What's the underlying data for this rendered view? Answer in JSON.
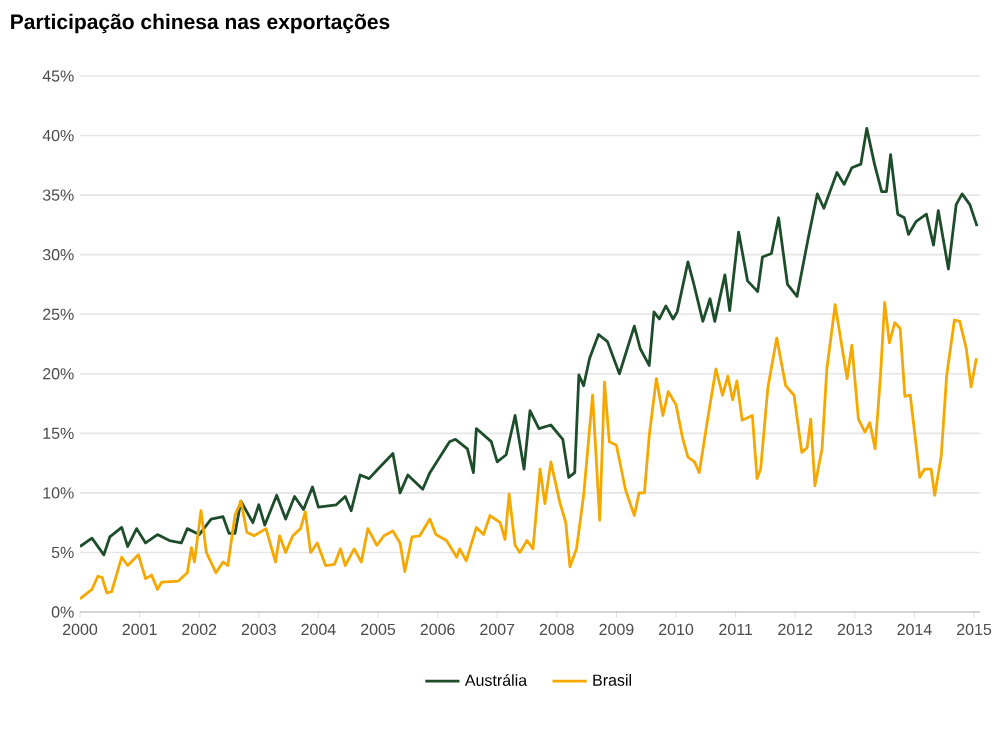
{
  "chart_data": {
    "type": "line",
    "title": "Participação chinesa nas exportações",
    "xlim": [
      2000,
      2015.1
    ],
    "xticks": [
      2000,
      2001,
      2002,
      2003,
      2004,
      2005,
      2006,
      2007,
      2008,
      2009,
      2010,
      2011,
      2012,
      2013,
      2014,
      2015
    ],
    "ylim": [
      0,
      45
    ],
    "yticks": [
      {
        "value": 0,
        "label": "0%"
      },
      {
        "value": 5,
        "label": "5%"
      },
      {
        "value": 10,
        "label": "10%"
      },
      {
        "value": 15,
        "label": "15%"
      },
      {
        "value": 20,
        "label": "20%"
      },
      {
        "value": 25,
        "label": "25%"
      },
      {
        "value": 30,
        "label": "30%"
      },
      {
        "value": 35,
        "label": "35%"
      },
      {
        "value": 40,
        "label": "40%"
      },
      {
        "value": 45,
        "label": "45%"
      }
    ],
    "grid": "y",
    "legend": "bottom",
    "marker": "none",
    "line_style": "solid",
    "series": [
      {
        "name": "Austrália",
        "color": "#1e4d2b",
        "x": [
          2000.0,
          2000.2,
          2000.4,
          2000.5,
          2000.7,
          2000.8,
          2000.95,
          2001.1,
          2001.3,
          2001.5,
          2001.7,
          2001.8,
          2002.0,
          2002.2,
          2002.4,
          2002.5,
          2002.6,
          2002.7,
          2002.9,
          2003.0,
          2003.1,
          2003.3,
          2003.45,
          2003.6,
          2003.75,
          2003.9,
          2004.0,
          2004.3,
          2004.45,
          2004.55,
          2004.7,
          2004.85,
          2005.0,
          2005.25,
          2005.37,
          2005.5,
          2005.75,
          2005.87,
          2006.2,
          2006.3,
          2006.5,
          2006.6,
          2006.65,
          2006.9,
          2007.0,
          2007.15,
          2007.3,
          2007.45,
          2007.55,
          2007.7,
          2007.9,
          2008.1,
          2008.2,
          2008.3,
          2008.37,
          2008.45,
          2008.55,
          2008.7,
          2008.85,
          2009.05,
          2009.3,
          2009.4,
          2009.55,
          2009.63,
          2009.72,
          2009.83,
          2009.95,
          2010.02,
          2010.2,
          2010.3,
          2010.45,
          2010.57,
          2010.65,
          2010.82,
          2010.9,
          2011.05,
          2011.2,
          2011.37,
          2011.45,
          2011.6,
          2011.72,
          2011.87,
          2012.03,
          2012.23,
          2012.37,
          2012.48,
          2012.7,
          2012.82,
          2012.95,
          2013.1,
          2013.2,
          2013.33,
          2013.45,
          2013.53,
          2013.6,
          2013.72,
          2013.83,
          2013.9,
          2014.03,
          2014.2,
          2014.32,
          2014.4,
          2014.57,
          2014.7,
          2014.8,
          2014.93,
          2015.05
        ],
        "values": [
          5.5,
          6.2,
          4.8,
          6.3,
          7.1,
          5.5,
          7.0,
          5.8,
          6.5,
          6.0,
          5.8,
          7.0,
          6.5,
          7.8,
          8.0,
          6.6,
          6.6,
          9.3,
          7.5,
          9.0,
          7.3,
          9.8,
          7.8,
          9.7,
          8.6,
          10.5,
          8.8,
          9.0,
          9.7,
          8.5,
          11.5,
          11.2,
          12.0,
          13.3,
          10.0,
          11.5,
          10.3,
          11.7,
          14.3,
          14.5,
          13.7,
          11.7,
          15.4,
          14.3,
          12.6,
          13.2,
          16.5,
          12.0,
          16.9,
          15.4,
          15.7,
          14.5,
          11.3,
          11.7,
          19.9,
          19.0,
          21.3,
          23.3,
          22.7,
          20.0,
          24.0,
          22.1,
          20.7,
          25.2,
          24.6,
          25.7,
          24.6,
          25.2,
          29.4,
          27.5,
          24.4,
          26.3,
          24.4,
          28.3,
          25.3,
          31.9,
          27.8,
          26.9,
          29.8,
          30.1,
          33.1,
          27.5,
          26.5,
          31.7,
          35.1,
          33.9,
          36.9,
          35.9,
          37.3,
          37.6,
          40.6,
          37.6,
          35.3,
          35.3,
          38.4,
          33.4,
          33.1,
          31.7,
          32.8,
          33.4,
          30.8,
          33.7,
          28.8,
          34.2,
          35.1,
          34.2,
          32.4
        ]
      },
      {
        "name": "Brasil",
        "color": "#f5a800",
        "x": [
          2000.0,
          2000.2,
          2000.3,
          2000.37,
          2000.45,
          2000.53,
          2000.7,
          2000.8,
          2000.98,
          2001.1,
          2001.2,
          2001.3,
          2001.37,
          2001.65,
          2001.8,
          2001.87,
          2001.92,
          2002.03,
          2002.12,
          2002.28,
          2002.4,
          2002.48,
          2002.6,
          2002.7,
          2002.8,
          2002.92,
          2003.12,
          2003.28,
          2003.35,
          2003.45,
          2003.57,
          2003.7,
          2003.78,
          2003.87,
          2003.98,
          2004.12,
          2004.27,
          2004.37,
          2004.45,
          2004.6,
          2004.72,
          2004.83,
          2004.98,
          2005.1,
          2005.25,
          2005.37,
          2005.45,
          2005.57,
          2005.7,
          2005.87,
          2005.97,
          2006.15,
          2006.32,
          2006.37,
          2006.48,
          2006.65,
          2006.77,
          2006.88,
          2007.05,
          2007.13,
          2007.2,
          2007.3,
          2007.38,
          2007.5,
          2007.6,
          2007.72,
          2007.8,
          2007.9,
          2008.05,
          2008.15,
          2008.22,
          2008.33,
          2008.45,
          2008.6,
          2008.72,
          2008.8,
          2008.88,
          2009.0,
          2009.15,
          2009.3,
          2009.38,
          2009.47,
          2009.55,
          2009.67,
          2009.78,
          2009.87,
          2010.0,
          2010.11,
          2010.2,
          2010.31,
          2010.39,
          2010.54,
          2010.67,
          2010.78,
          2010.87,
          2010.95,
          2011.02,
          2011.11,
          2011.28,
          2011.36,
          2011.42,
          2011.54,
          2011.69,
          2011.84,
          2011.98,
          2012.11,
          2012.2,
          2012.26,
          2012.33,
          2012.45,
          2012.53,
          2012.67,
          2012.78,
          2012.87,
          2012.95,
          2013.06,
          2013.17,
          2013.25,
          2013.34,
          2013.43,
          2013.5,
          2013.58,
          2013.67,
          2013.76,
          2013.84,
          2013.93,
          2014.09,
          2014.17,
          2014.28,
          2014.34,
          2014.45,
          2014.54,
          2014.67,
          2014.76,
          2014.87,
          2014.95,
          2015.04
        ],
        "values": [
          1.1,
          1.9,
          3.0,
          2.9,
          1.6,
          1.7,
          4.6,
          3.9,
          4.8,
          2.8,
          3.1,
          1.9,
          2.5,
          2.6,
          3.3,
          5.4,
          4.2,
          8.5,
          5.0,
          3.3,
          4.2,
          3.9,
          8.1,
          9.3,
          6.7,
          6.4,
          7.0,
          4.2,
          6.4,
          5.0,
          6.4,
          7.0,
          8.4,
          5.0,
          5.8,
          3.9,
          4.0,
          5.3,
          3.9,
          5.3,
          4.2,
          7.0,
          5.6,
          6.4,
          6.8,
          5.8,
          3.4,
          6.3,
          6.4,
          7.8,
          6.5,
          6.0,
          4.6,
          5.3,
          4.3,
          7.1,
          6.5,
          8.1,
          7.5,
          6.1,
          9.9,
          5.6,
          5.0,
          6.0,
          5.3,
          12.0,
          9.1,
          12.6,
          9.2,
          7.5,
          3.8,
          5.3,
          9.8,
          18.2,
          7.7,
          19.3,
          14.3,
          14.0,
          10.3,
          8.1,
          10.0,
          10.0,
          14.8,
          19.6,
          16.5,
          18.5,
          17.4,
          14.6,
          13.0,
          12.6,
          11.7,
          16.5,
          20.4,
          18.2,
          19.8,
          17.8,
          19.4,
          16.1,
          16.5,
          11.2,
          12.0,
          18.8,
          23.0,
          19.0,
          18.2,
          13.4,
          13.8,
          16.2,
          10.6,
          13.7,
          20.4,
          25.8,
          22.4,
          19.6,
          22.4,
          16.2,
          15.1,
          15.9,
          13.7,
          19.8,
          26.0,
          22.6,
          24.3,
          23.8,
          18.1,
          18.2,
          11.3,
          12.0,
          12.0,
          9.8,
          13.1,
          19.8,
          24.5,
          24.4,
          22.1,
          18.9,
          21.3
        ]
      }
    ]
  }
}
